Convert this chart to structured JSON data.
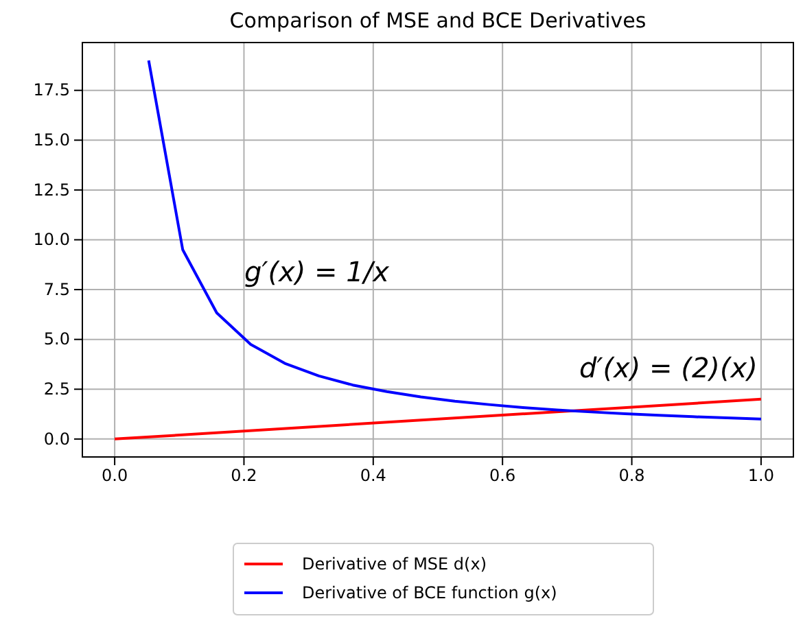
{
  "chart_data": {
    "type": "line",
    "title": "Comparison of MSE and BCE Derivatives",
    "series": [
      {
        "name": "Derivative of MSE d(x)",
        "color": "#ff0000",
        "x": [
          0,
          1
        ],
        "values": [
          0,
          2
        ]
      },
      {
        "name": "Derivative of BCE function g(x)",
        "color": "#0000ff",
        "x": [
          0.0526,
          0.1053,
          0.1579,
          0.2105,
          0.2632,
          0.3158,
          0.3684,
          0.4211,
          0.4737,
          0.5263,
          0.5789,
          0.6316,
          0.6842,
          0.7368,
          0.7895,
          0.8421,
          0.8947,
          0.9474,
          1.0
        ],
        "values": [
          19,
          9.5,
          6.33,
          4.75,
          3.8,
          3.17,
          2.71,
          2.38,
          2.11,
          1.9,
          1.73,
          1.58,
          1.46,
          1.36,
          1.27,
          1.19,
          1.12,
          1.06,
          1.0
        ]
      }
    ],
    "xlim": [
      -0.05,
      1.05
    ],
    "ylim": [
      -0.9,
      19.9
    ],
    "xticks": [
      {
        "value": 0,
        "label": "0.0"
      },
      {
        "value": 0.2,
        "label": "0.2"
      },
      {
        "value": 0.4,
        "label": "0.4"
      },
      {
        "value": 0.6,
        "label": "0.6"
      },
      {
        "value": 0.8,
        "label": "0.8"
      },
      {
        "value": 1,
        "label": "1.0"
      }
    ],
    "yticks": [
      {
        "value": 0,
        "label": "0.0"
      },
      {
        "value": 2.5,
        "label": "2.5"
      },
      {
        "value": 5,
        "label": "5.0"
      },
      {
        "value": 7.5,
        "label": "7.5"
      },
      {
        "value": 10,
        "label": "10.0"
      },
      {
        "value": 12.5,
        "label": "12.5"
      },
      {
        "value": 15,
        "label": "15.0"
      },
      {
        "value": 17.5,
        "label": "17.5"
      }
    ],
    "annotations": [
      "g′(x) = 1/x",
      "d′(x) = (2)(x)"
    ],
    "grid": true,
    "legend": "bottom",
    "marker": "none",
    "line_style": "solid"
  }
}
